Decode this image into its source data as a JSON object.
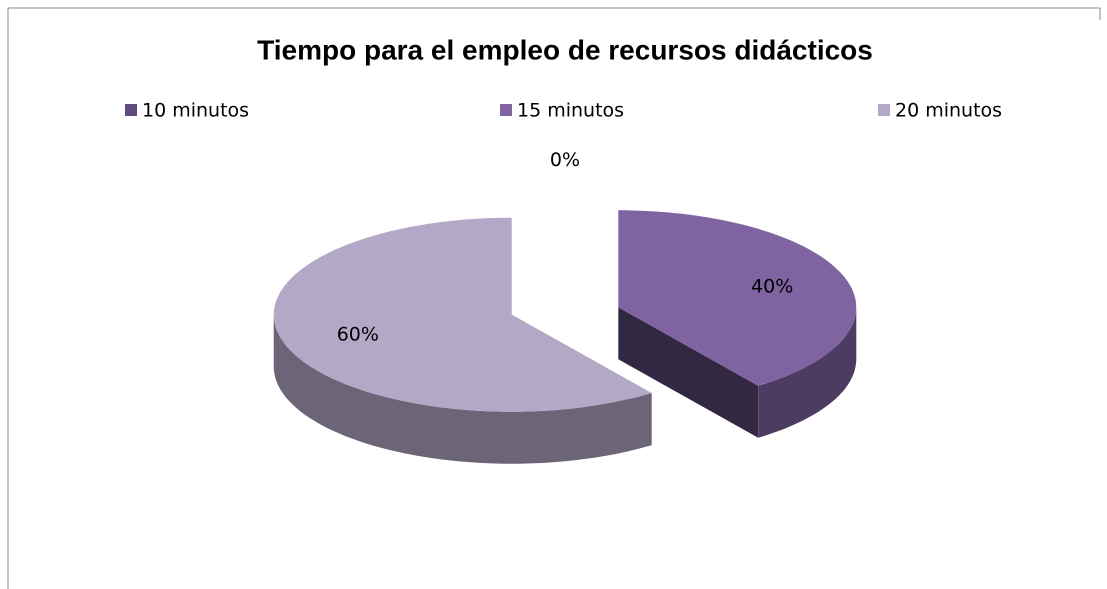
{
  "chart_data": {
    "type": "pie3d",
    "title": "Tiempo para el  empleo de recursos didácticos",
    "categories": [
      "10 minutos",
      "15 minutos",
      "20 minutos"
    ],
    "values": [
      0,
      40,
      60
    ],
    "value_labels": [
      "0%",
      "40%",
      "60%"
    ],
    "colors": [
      "#5f4b7e",
      "#8064a2",
      "#b3a9c7"
    ],
    "legend": "top"
  }
}
